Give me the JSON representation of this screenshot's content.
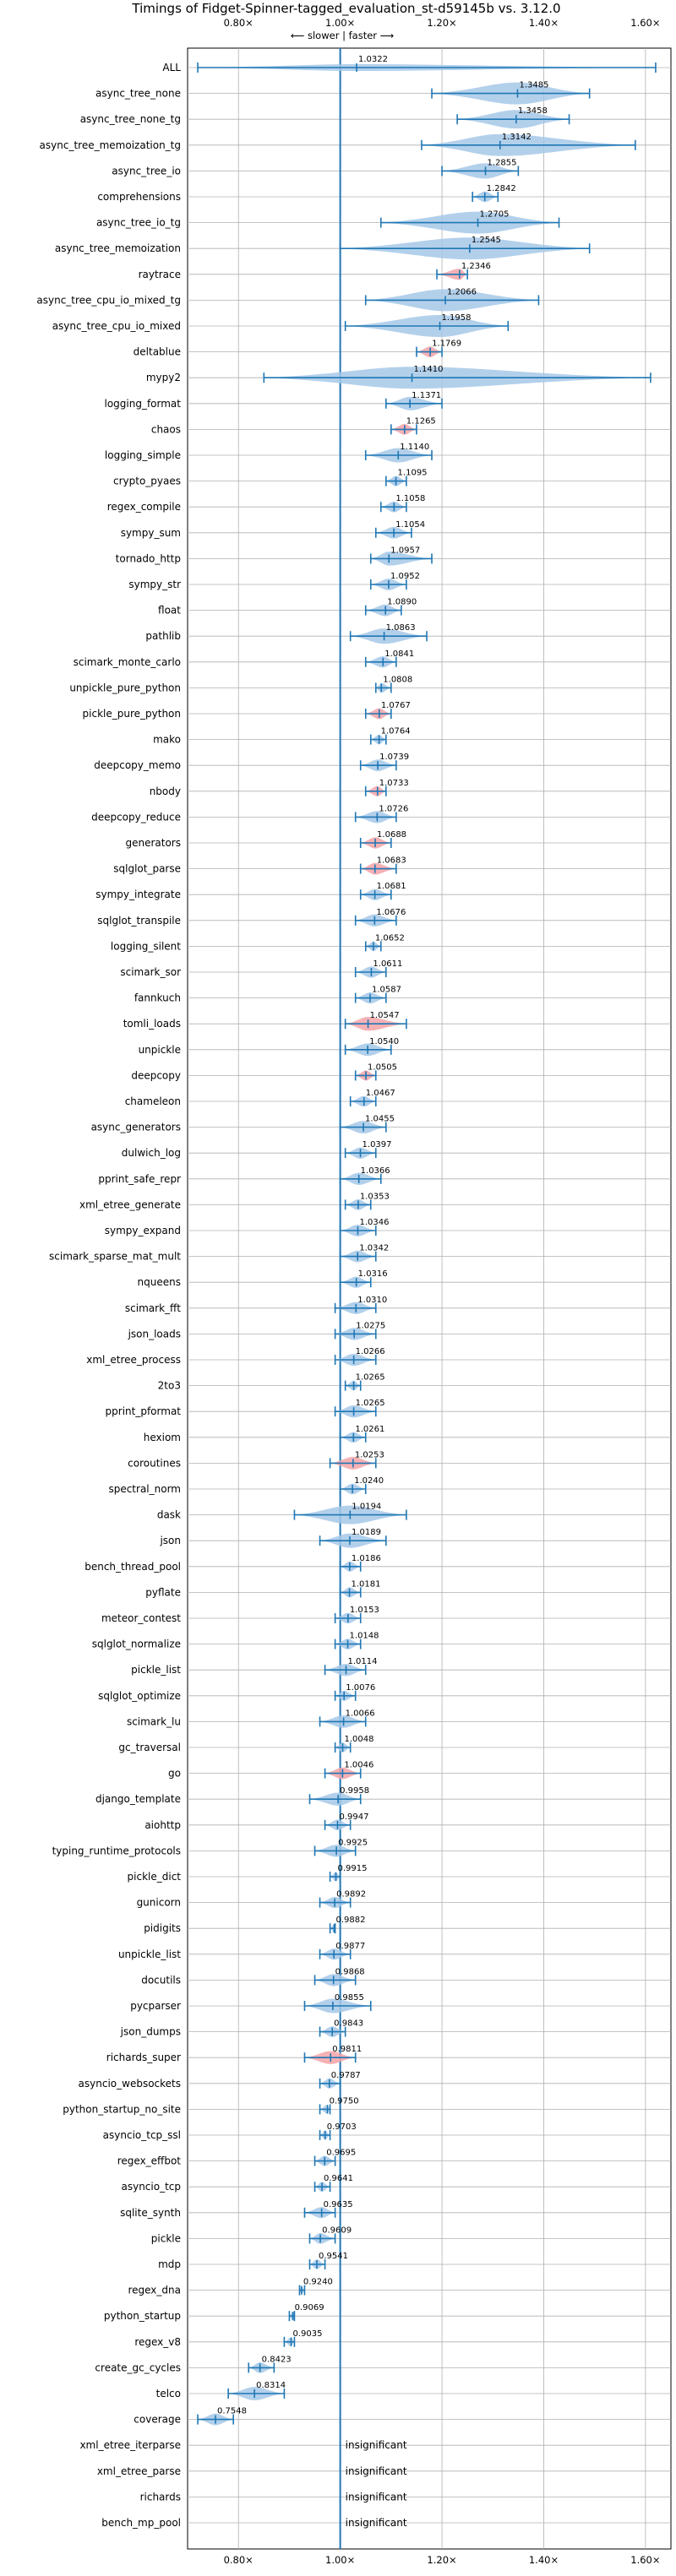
{
  "chart_data": {
    "type": "violin",
    "title": "Timings of Fidget-Spinner-tagged_evaluation_st-d59145b vs. 3.12.0",
    "direction_label": "⟵ slower | faster ⟶",
    "xlim": [
      0.7,
      1.65
    ],
    "x_ticks": [
      0.8,
      1.0,
      1.2,
      1.4,
      1.6
    ],
    "x_tick_labels": [
      "0.80×",
      "1.00×",
      "1.20×",
      "1.40×",
      "1.60×"
    ],
    "reference_x": 1.0,
    "grid": true,
    "colors": {
      "violin": "#a6c8e8",
      "highlight": "#f4a3a8",
      "line": "#1f77b4",
      "grid": "#b0b0b0"
    },
    "insignificant_label": "insignificant",
    "benchmarks": [
      {
        "name": "ALL",
        "value": 1.0322,
        "min": 0.72,
        "max": 1.62,
        "spread": "wide"
      },
      {
        "name": "async_tree_none",
        "value": 1.3485,
        "min": 1.18,
        "max": 1.49
      },
      {
        "name": "async_tree_none_tg",
        "value": 1.3458,
        "min": 1.23,
        "max": 1.45
      },
      {
        "name": "async_tree_memoization_tg",
        "value": 1.3142,
        "min": 1.16,
        "max": 1.58
      },
      {
        "name": "async_tree_io",
        "value": 1.2855,
        "min": 1.2,
        "max": 1.35
      },
      {
        "name": "comprehensions",
        "value": 1.2842,
        "min": 1.26,
        "max": 1.31
      },
      {
        "name": "async_tree_io_tg",
        "value": 1.2705,
        "min": 1.08,
        "max": 1.43
      },
      {
        "name": "async_tree_memoization",
        "value": 1.2545,
        "min": 1.0,
        "max": 1.49
      },
      {
        "name": "raytrace",
        "value": 1.2346,
        "min": 1.19,
        "max": 1.25,
        "highlight": true
      },
      {
        "name": "async_tree_cpu_io_mixed_tg",
        "value": 1.2066,
        "min": 1.05,
        "max": 1.39
      },
      {
        "name": "async_tree_cpu_io_mixed",
        "value": 1.1958,
        "min": 1.01,
        "max": 1.33
      },
      {
        "name": "deltablue",
        "value": 1.1769,
        "min": 1.15,
        "max": 1.2,
        "highlight": true
      },
      {
        "name": "mypy2",
        "value": 1.141,
        "min": 0.85,
        "max": 1.61
      },
      {
        "name": "logging_format",
        "value": 1.1371,
        "min": 1.09,
        "max": 1.2
      },
      {
        "name": "chaos",
        "value": 1.1265,
        "min": 1.1,
        "max": 1.15,
        "highlight": true
      },
      {
        "name": "logging_simple",
        "value": 1.114,
        "min": 1.05,
        "max": 1.18
      },
      {
        "name": "crypto_pyaes",
        "value": 1.1095,
        "min": 1.09,
        "max": 1.13
      },
      {
        "name": "regex_compile",
        "value": 1.1058,
        "min": 1.08,
        "max": 1.13
      },
      {
        "name": "sympy_sum",
        "value": 1.1054,
        "min": 1.07,
        "max": 1.14
      },
      {
        "name": "tornado_http",
        "value": 1.0957,
        "min": 1.06,
        "max": 1.18
      },
      {
        "name": "sympy_str",
        "value": 1.0952,
        "min": 1.06,
        "max": 1.13
      },
      {
        "name": "float",
        "value": 1.089,
        "min": 1.05,
        "max": 1.12
      },
      {
        "name": "pathlib",
        "value": 1.0863,
        "min": 1.02,
        "max": 1.17
      },
      {
        "name": "scimark_monte_carlo",
        "value": 1.0841,
        "min": 1.05,
        "max": 1.11
      },
      {
        "name": "unpickle_pure_python",
        "value": 1.0808,
        "min": 1.07,
        "max": 1.1
      },
      {
        "name": "pickle_pure_python",
        "value": 1.0767,
        "min": 1.05,
        "max": 1.1,
        "highlight": true
      },
      {
        "name": "mako",
        "value": 1.0764,
        "min": 1.06,
        "max": 1.09
      },
      {
        "name": "deepcopy_memo",
        "value": 1.0739,
        "min": 1.04,
        "max": 1.11
      },
      {
        "name": "nbody",
        "value": 1.0733,
        "min": 1.05,
        "max": 1.09,
        "highlight": true
      },
      {
        "name": "deepcopy_reduce",
        "value": 1.0726,
        "min": 1.03,
        "max": 1.11
      },
      {
        "name": "generators",
        "value": 1.0688,
        "min": 1.04,
        "max": 1.1,
        "highlight": true
      },
      {
        "name": "sqlglot_parse",
        "value": 1.0683,
        "min": 1.04,
        "max": 1.11,
        "highlight": true
      },
      {
        "name": "sympy_integrate",
        "value": 1.0681,
        "min": 1.04,
        "max": 1.1
      },
      {
        "name": "sqlglot_transpile",
        "value": 1.0676,
        "min": 1.03,
        "max": 1.11
      },
      {
        "name": "logging_silent",
        "value": 1.0652,
        "min": 1.05,
        "max": 1.08
      },
      {
        "name": "scimark_sor",
        "value": 1.0611,
        "min": 1.03,
        "max": 1.09
      },
      {
        "name": "fannkuch",
        "value": 1.0587,
        "min": 1.03,
        "max": 1.09
      },
      {
        "name": "tomli_loads",
        "value": 1.0547,
        "min": 1.01,
        "max": 1.13,
        "highlight": true
      },
      {
        "name": "unpickle",
        "value": 1.054,
        "min": 1.01,
        "max": 1.1
      },
      {
        "name": "deepcopy",
        "value": 1.0505,
        "min": 1.03,
        "max": 1.07,
        "highlight": true
      },
      {
        "name": "chameleon",
        "value": 1.0467,
        "min": 1.02,
        "max": 1.07
      },
      {
        "name": "async_generators",
        "value": 1.0455,
        "min": 1.0,
        "max": 1.09
      },
      {
        "name": "dulwich_log",
        "value": 1.0397,
        "min": 1.01,
        "max": 1.07
      },
      {
        "name": "pprint_safe_repr",
        "value": 1.0366,
        "min": 1.0,
        "max": 1.08
      },
      {
        "name": "xml_etree_generate",
        "value": 1.0353,
        "min": 1.01,
        "max": 1.06
      },
      {
        "name": "sympy_expand",
        "value": 1.0346,
        "min": 1.0,
        "max": 1.07
      },
      {
        "name": "scimark_sparse_mat_mult",
        "value": 1.0342,
        "min": 1.0,
        "max": 1.07
      },
      {
        "name": "nqueens",
        "value": 1.0316,
        "min": 1.0,
        "max": 1.06
      },
      {
        "name": "scimark_fft",
        "value": 1.031,
        "min": 0.99,
        "max": 1.07
      },
      {
        "name": "json_loads",
        "value": 1.0275,
        "min": 0.99,
        "max": 1.07
      },
      {
        "name": "xml_etree_process",
        "value": 1.0266,
        "min": 0.99,
        "max": 1.07
      },
      {
        "name": "2to3",
        "value": 1.0265,
        "min": 1.01,
        "max": 1.04
      },
      {
        "name": "pprint_pformat",
        "value": 1.0265,
        "min": 0.99,
        "max": 1.07
      },
      {
        "name": "hexiom",
        "value": 1.0261,
        "min": 1.0,
        "max": 1.05
      },
      {
        "name": "coroutines",
        "value": 1.0253,
        "min": 0.98,
        "max": 1.07,
        "highlight": true
      },
      {
        "name": "spectral_norm",
        "value": 1.024,
        "min": 1.0,
        "max": 1.05
      },
      {
        "name": "dask",
        "value": 1.0194,
        "min": 0.91,
        "max": 1.13
      },
      {
        "name": "json",
        "value": 1.0189,
        "min": 0.96,
        "max": 1.09
      },
      {
        "name": "bench_thread_pool",
        "value": 1.0186,
        "min": 1.0,
        "max": 1.04
      },
      {
        "name": "pyflate",
        "value": 1.0181,
        "min": 1.0,
        "max": 1.04
      },
      {
        "name": "meteor_contest",
        "value": 1.0153,
        "min": 0.99,
        "max": 1.04
      },
      {
        "name": "sqlglot_normalize",
        "value": 1.0148,
        "min": 0.99,
        "max": 1.04
      },
      {
        "name": "pickle_list",
        "value": 1.0114,
        "min": 0.97,
        "max": 1.05
      },
      {
        "name": "sqlglot_optimize",
        "value": 1.0076,
        "min": 0.99,
        "max": 1.03
      },
      {
        "name": "scimark_lu",
        "value": 1.0066,
        "min": 0.96,
        "max": 1.05
      },
      {
        "name": "gc_traversal",
        "value": 1.0048,
        "min": 0.99,
        "max": 1.02
      },
      {
        "name": "go",
        "value": 1.0046,
        "min": 0.97,
        "max": 1.04,
        "highlight": true
      },
      {
        "name": "django_template",
        "value": 0.9958,
        "min": 0.94,
        "max": 1.04
      },
      {
        "name": "aiohttp",
        "value": 0.9947,
        "min": 0.97,
        "max": 1.02
      },
      {
        "name": "typing_runtime_protocols",
        "value": 0.9925,
        "min": 0.95,
        "max": 1.03
      },
      {
        "name": "pickle_dict",
        "value": 0.9915,
        "min": 0.98,
        "max": 1.0
      },
      {
        "name": "gunicorn",
        "value": 0.9892,
        "min": 0.96,
        "max": 1.02
      },
      {
        "name": "pidigits",
        "value": 0.9882,
        "min": 0.98,
        "max": 0.99
      },
      {
        "name": "unpickle_list",
        "value": 0.9877,
        "min": 0.96,
        "max": 1.02
      },
      {
        "name": "docutils",
        "value": 0.9868,
        "min": 0.95,
        "max": 1.03
      },
      {
        "name": "pycparser",
        "value": 0.9855,
        "min": 0.93,
        "max": 1.06
      },
      {
        "name": "json_dumps",
        "value": 0.9843,
        "min": 0.96,
        "max": 1.01
      },
      {
        "name": "richards_super",
        "value": 0.9811,
        "min": 0.93,
        "max": 1.03,
        "highlight": true
      },
      {
        "name": "asyncio_websockets",
        "value": 0.9787,
        "min": 0.96,
        "max": 1.0
      },
      {
        "name": "python_startup_no_site",
        "value": 0.975,
        "min": 0.96,
        "max": 0.98
      },
      {
        "name": "asyncio_tcp_ssl",
        "value": 0.9703,
        "min": 0.96,
        "max": 0.98
      },
      {
        "name": "regex_effbot",
        "value": 0.9695,
        "min": 0.95,
        "max": 0.99
      },
      {
        "name": "asyncio_tcp",
        "value": 0.9641,
        "min": 0.95,
        "max": 0.98
      },
      {
        "name": "sqlite_synth",
        "value": 0.9635,
        "min": 0.93,
        "max": 0.99
      },
      {
        "name": "pickle",
        "value": 0.9609,
        "min": 0.94,
        "max": 0.99
      },
      {
        "name": "mdp",
        "value": 0.9541,
        "min": 0.94,
        "max": 0.97
      },
      {
        "name": "regex_dna",
        "value": 0.924,
        "min": 0.92,
        "max": 0.93
      },
      {
        "name": "python_startup",
        "value": 0.9069,
        "min": 0.9,
        "max": 0.91
      },
      {
        "name": "regex_v8",
        "value": 0.9035,
        "min": 0.89,
        "max": 0.91
      },
      {
        "name": "create_gc_cycles",
        "value": 0.8423,
        "min": 0.82,
        "max": 0.87
      },
      {
        "name": "telco",
        "value": 0.8314,
        "min": 0.78,
        "max": 0.89
      },
      {
        "name": "coverage",
        "value": 0.7548,
        "min": 0.72,
        "max": 0.79
      },
      {
        "name": "xml_etree_iterparse",
        "value": null,
        "insignificant": true
      },
      {
        "name": "xml_etree_parse",
        "value": null,
        "insignificant": true
      },
      {
        "name": "richards",
        "value": null,
        "insignificant": true
      },
      {
        "name": "bench_mp_pool",
        "value": null,
        "insignificant": true
      }
    ]
  }
}
